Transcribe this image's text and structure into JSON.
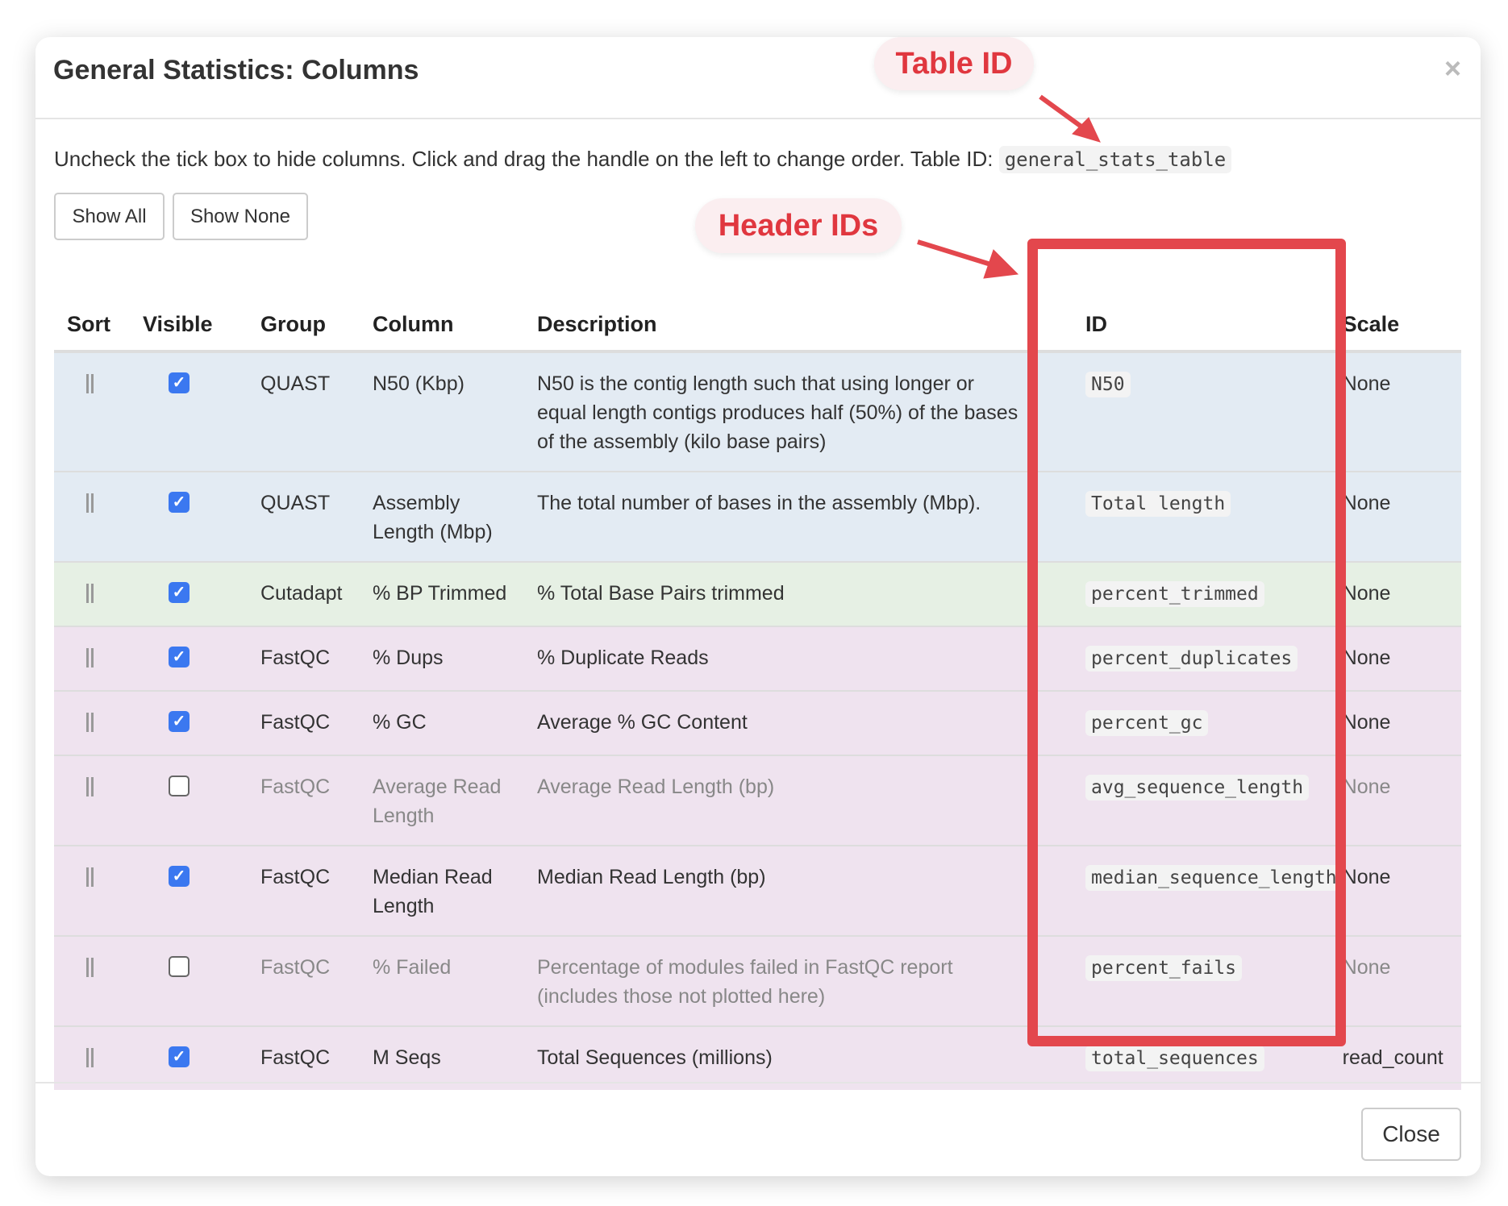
{
  "dialog": {
    "title": "General Statistics: Columns",
    "close_x": "×",
    "intro": "Uncheck the tick box to hide columns. Click and drag the handle on the left to change order. Table ID:",
    "table_id": "general_stats_table",
    "show_all": "Show All",
    "show_none": "Show None",
    "close": "Close"
  },
  "headers": {
    "sort": "Sort",
    "visible": "Visible",
    "group": "Group",
    "column": "Column",
    "description": "Description",
    "id": "ID",
    "scale": "Scale"
  },
  "rows": [
    {
      "group": "QUAST",
      "column": "N50 (Kbp)",
      "description": "N50 is the contig length such that using longer or equal length contigs produces half (50%) of the bases of the assembly (kilo base pairs)",
      "id": "N50",
      "scale": "None",
      "visible": true
    },
    {
      "group": "QUAST",
      "column": "Assembly Length (Mbp)",
      "description": "The total number of bases in the assembly (Mbp).",
      "id": "Total length",
      "scale": "None",
      "visible": true
    },
    {
      "group": "Cutadapt",
      "column": "% BP Trimmed",
      "description": "% Total Base Pairs trimmed",
      "id": "percent_trimmed",
      "scale": "None",
      "visible": true
    },
    {
      "group": "FastQC",
      "column": "% Dups",
      "description": "% Duplicate Reads",
      "id": "percent_duplicates",
      "scale": "None",
      "visible": true
    },
    {
      "group": "FastQC",
      "column": "% GC",
      "description": "Average % GC Content",
      "id": "percent_gc",
      "scale": "None",
      "visible": true
    },
    {
      "group": "FastQC",
      "column": "Average Read Length",
      "description": "Average Read Length (bp)",
      "id": "avg_sequence_length",
      "scale": "None",
      "visible": false
    },
    {
      "group": "FastQC",
      "column": "Median Read Length",
      "description": "Median Read Length (bp)",
      "id": "median_sequence_length",
      "scale": "None",
      "visible": true
    },
    {
      "group": "FastQC",
      "column": "% Failed",
      "description": "Percentage of modules failed in FastQC report (includes those not plotted here)",
      "id": "percent_fails",
      "scale": "None",
      "visible": false
    },
    {
      "group": "FastQC",
      "column": "M Seqs",
      "description": "Total Sequences (millions)",
      "id": "total_sequences",
      "scale": "read_count",
      "visible": true
    }
  ],
  "annotations": {
    "table_id": "Table ID",
    "header_ids": "Header IDs",
    "color": "#e3474d"
  },
  "colors": {
    "quast": "#e3ebf3",
    "cutadapt": "#e6f0e4",
    "fastqc": "#efe3ef",
    "checkbox": "#3b78f0"
  }
}
